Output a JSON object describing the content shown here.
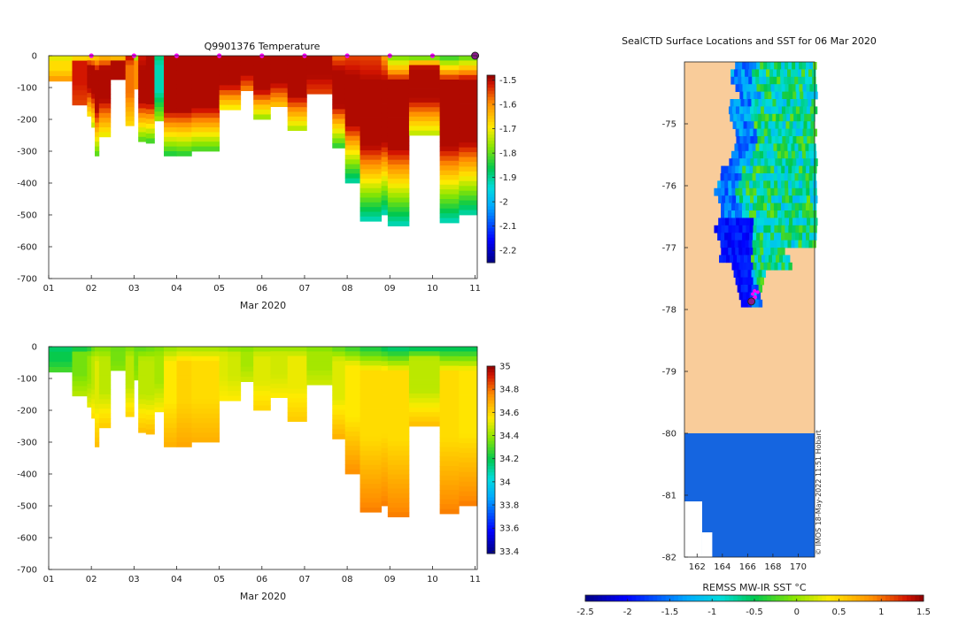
{
  "colors": {
    "land": "#f9cc9a",
    "axis": "#222222",
    "marker": "#ff00ff",
    "position": "#8b1a8b"
  },
  "chart_data": [
    {
      "type": "heatmap",
      "id": "temperature",
      "title": "Q9901376  Temperature",
      "xlabel": "Mar 2020",
      "ylabel": "",
      "xlim": [
        1,
        11.05
      ],
      "ylim": [
        -700,
        0
      ],
      "x_ticks": [
        "01",
        "02",
        "03",
        "04",
        "05",
        "06",
        "07",
        "08",
        "09",
        "10",
        "11"
      ],
      "y_ticks": [
        0,
        -100,
        -200,
        -300,
        -400,
        -500,
        -600,
        -700
      ],
      "colorbar": {
        "min": -2.25,
        "max": -1.48,
        "ticks": [
          -1.5,
          -1.6,
          -1.7,
          -1.8,
          -1.9,
          -2,
          -2.1,
          -2.2
        ]
      },
      "daily_markers_x": [
        2,
        3,
        4,
        5,
        6,
        7,
        8,
        9,
        10
      ],
      "last_position_x": 11,
      "profiles": [
        {
          "x": 1.0,
          "w": 0.55,
          "depth": 80,
          "surface": -1.78,
          "mid": -1.68,
          "deep": -1.6
        },
        {
          "x": 1.55,
          "w": 0.35,
          "depth": 155,
          "surface": -1.75,
          "mid": -1.52,
          "deep": -1.55
        },
        {
          "x": 1.9,
          "w": 0.1,
          "depth": 190,
          "surface": -1.72,
          "mid": -1.5,
          "deep": -1.7
        },
        {
          "x": 2.0,
          "w": 0.08,
          "depth": 225,
          "surface": -1.7,
          "mid": -1.5,
          "deep": -1.75
        },
        {
          "x": 2.08,
          "w": 0.1,
          "depth": 315,
          "surface": -1.68,
          "mid": -1.5,
          "deep": -1.82
        },
        {
          "x": 2.18,
          "w": 0.27,
          "depth": 255,
          "surface": -1.66,
          "mid": -1.5,
          "deep": -1.72
        },
        {
          "x": 2.45,
          "w": 0.35,
          "depth": 75,
          "surface": -1.92,
          "mid": -1.5,
          "deep": -1.5
        },
        {
          "x": 2.8,
          "w": 0.2,
          "depth": 220,
          "surface": -1.5,
          "mid": -1.58,
          "deep": -1.68
        },
        {
          "x": 3.0,
          "w": 0.1,
          "depth": 105,
          "surface": -1.9,
          "mid": -1.6,
          "deep": -1.6
        },
        {
          "x": 3.1,
          "w": 0.18,
          "depth": 270,
          "surface": -1.52,
          "mid": -1.5,
          "deep": -1.82
        },
        {
          "x": 3.28,
          "w": 0.2,
          "depth": 275,
          "surface": -1.5,
          "mid": -1.5,
          "deep": -1.84
        },
        {
          "x": 3.48,
          "w": 0.22,
          "depth": 205,
          "surface": -1.88,
          "mid": -1.92,
          "deep": -1.75
        },
        {
          "x": 3.7,
          "w": 0.3,
          "depth": 315,
          "surface": -1.5,
          "mid": -1.5,
          "deep": -1.86
        },
        {
          "x": 4.0,
          "w": 0.35,
          "depth": 315,
          "surface": -1.5,
          "mid": -1.5,
          "deep": -1.85
        },
        {
          "x": 4.35,
          "w": 0.65,
          "depth": 300,
          "surface": -1.5,
          "mid": -1.5,
          "deep": -1.83
        },
        {
          "x": 5.0,
          "w": 0.2,
          "depth": 170,
          "surface": -1.5,
          "mid": -1.5,
          "deep": -1.72
        },
        {
          "x": 5.2,
          "w": 0.3,
          "depth": 170,
          "surface": -1.5,
          "mid": -1.5,
          "deep": -1.72
        },
        {
          "x": 5.5,
          "w": 0.3,
          "depth": 110,
          "surface": -1.5,
          "mid": -1.5,
          "deep": -1.6
        },
        {
          "x": 5.8,
          "w": 0.4,
          "depth": 200,
          "surface": -1.5,
          "mid": -1.5,
          "deep": -1.78
        },
        {
          "x": 6.2,
          "w": 0.4,
          "depth": 160,
          "surface": -1.5,
          "mid": -1.5,
          "deep": -1.66
        },
        {
          "x": 6.6,
          "w": 0.45,
          "depth": 235,
          "surface": -1.5,
          "mid": -1.5,
          "deep": -1.76
        },
        {
          "x": 7.05,
          "w": 0.6,
          "depth": 120,
          "surface": -1.5,
          "mid": -1.5,
          "deep": -1.55
        },
        {
          "x": 7.65,
          "w": 0.3,
          "depth": 290,
          "surface": -1.58,
          "mid": -1.5,
          "deep": -1.85
        },
        {
          "x": 7.95,
          "w": 0.35,
          "depth": 400,
          "surface": -1.55,
          "mid": -1.5,
          "deep": -1.92
        },
        {
          "x": 8.3,
          "w": 0.5,
          "depth": 520,
          "surface": -1.55,
          "mid": -1.5,
          "deep": -1.93
        },
        {
          "x": 8.8,
          "w": 0.15,
          "depth": 500,
          "surface": -1.62,
          "mid": -1.5,
          "deep": -1.93
        },
        {
          "x": 8.95,
          "w": 0.5,
          "depth": 535,
          "surface": -1.8,
          "mid": -1.5,
          "deep": -1.93
        },
        {
          "x": 9.45,
          "w": 0.72,
          "depth": 250,
          "surface": -1.85,
          "mid": -1.5,
          "deep": -1.75
        },
        {
          "x": 10.17,
          "w": 0.45,
          "depth": 525,
          "surface": -1.85,
          "mid": -1.5,
          "deep": -1.93
        },
        {
          "x": 10.62,
          "w": 0.43,
          "depth": 500,
          "surface": -1.82,
          "mid": -1.5,
          "deep": -1.92
        }
      ]
    },
    {
      "type": "heatmap",
      "id": "salinity",
      "title": "",
      "xlabel": "Mar 2020",
      "ylabel": "",
      "xlim": [
        1,
        11.05
      ],
      "ylim": [
        -700,
        0
      ],
      "x_ticks": [
        "01",
        "02",
        "03",
        "04",
        "05",
        "06",
        "07",
        "08",
        "09",
        "10",
        "11"
      ],
      "y_ticks": [
        0,
        -100,
        -200,
        -300,
        -400,
        -500,
        -600,
        -700
      ],
      "colorbar": {
        "min": 33.38,
        "max": 35.0,
        "ticks": [
          35,
          34.8,
          34.6,
          34.4,
          34.2,
          34,
          33.8,
          33.6,
          33.4
        ]
      },
      "profiles": [
        {
          "x": 1.0,
          "w": 0.55,
          "depth": 80,
          "surface": 34.1,
          "mid": 34.2,
          "deep": 34.3
        },
        {
          "x": 1.55,
          "w": 0.35,
          "depth": 155,
          "surface": 34.15,
          "mid": 34.35,
          "deep": 34.45
        },
        {
          "x": 1.9,
          "w": 0.1,
          "depth": 190,
          "surface": 34.2,
          "mid": 34.4,
          "deep": 34.52
        },
        {
          "x": 2.0,
          "w": 0.08,
          "depth": 225,
          "surface": 34.3,
          "mid": 34.45,
          "deep": 34.58
        },
        {
          "x": 2.08,
          "w": 0.1,
          "depth": 315,
          "surface": 34.35,
          "mid": 34.5,
          "deep": 34.65
        },
        {
          "x": 2.18,
          "w": 0.27,
          "depth": 255,
          "surface": 34.35,
          "mid": 34.45,
          "deep": 34.62
        },
        {
          "x": 2.45,
          "w": 0.35,
          "depth": 75,
          "surface": 34.32,
          "mid": 34.35,
          "deep": 34.38
        },
        {
          "x": 2.8,
          "w": 0.2,
          "depth": 220,
          "surface": 34.35,
          "mid": 34.45,
          "deep": 34.6
        },
        {
          "x": 3.0,
          "w": 0.1,
          "depth": 105,
          "surface": 34.3,
          "mid": 34.36,
          "deep": 34.4
        },
        {
          "x": 3.1,
          "w": 0.18,
          "depth": 270,
          "surface": 34.3,
          "mid": 34.45,
          "deep": 34.65
        },
        {
          "x": 3.28,
          "w": 0.2,
          "depth": 275,
          "surface": 34.32,
          "mid": 34.45,
          "deep": 34.66
        },
        {
          "x": 3.48,
          "w": 0.22,
          "depth": 205,
          "surface": 34.35,
          "mid": 34.42,
          "deep": 34.55
        },
        {
          "x": 3.7,
          "w": 0.3,
          "depth": 315,
          "surface": 34.38,
          "mid": 34.55,
          "deep": 34.68
        },
        {
          "x": 4.0,
          "w": 0.35,
          "depth": 315,
          "surface": 34.4,
          "mid": 34.6,
          "deep": 34.7
        },
        {
          "x": 4.35,
          "w": 0.65,
          "depth": 300,
          "surface": 34.4,
          "mid": 34.58,
          "deep": 34.68
        },
        {
          "x": 5.0,
          "w": 0.2,
          "depth": 170,
          "surface": 34.38,
          "mid": 34.5,
          "deep": 34.55
        },
        {
          "x": 5.2,
          "w": 0.3,
          "depth": 170,
          "surface": 34.36,
          "mid": 34.48,
          "deep": 34.55
        },
        {
          "x": 5.5,
          "w": 0.3,
          "depth": 110,
          "surface": 34.35,
          "mid": 34.42,
          "deep": 34.48
        },
        {
          "x": 5.8,
          "w": 0.4,
          "depth": 200,
          "surface": 34.38,
          "mid": 34.5,
          "deep": 34.6
        },
        {
          "x": 6.2,
          "w": 0.4,
          "depth": 160,
          "surface": 34.38,
          "mid": 34.48,
          "deep": 34.55
        },
        {
          "x": 6.6,
          "w": 0.45,
          "depth": 235,
          "surface": 34.38,
          "mid": 34.52,
          "deep": 34.62
        },
        {
          "x": 7.05,
          "w": 0.6,
          "depth": 120,
          "surface": 34.35,
          "mid": 34.42,
          "deep": 34.48
        },
        {
          "x": 7.65,
          "w": 0.3,
          "depth": 290,
          "surface": 34.3,
          "mid": 34.5,
          "deep": 34.68
        },
        {
          "x": 7.95,
          "w": 0.35,
          "depth": 400,
          "surface": 34.25,
          "mid": 34.55,
          "deep": 34.75
        },
        {
          "x": 8.3,
          "w": 0.5,
          "depth": 520,
          "surface": 34.2,
          "mid": 34.58,
          "deep": 34.78
        },
        {
          "x": 8.8,
          "w": 0.15,
          "depth": 500,
          "surface": 34.15,
          "mid": 34.58,
          "deep": 34.78
        },
        {
          "x": 8.95,
          "w": 0.5,
          "depth": 535,
          "surface": 34.12,
          "mid": 34.58,
          "deep": 34.78
        },
        {
          "x": 9.45,
          "w": 0.72,
          "depth": 250,
          "surface": 34.12,
          "mid": 34.45,
          "deep": 34.65
        },
        {
          "x": 10.17,
          "w": 0.45,
          "depth": 525,
          "surface": 34.15,
          "mid": 34.58,
          "deep": 34.78
        },
        {
          "x": 10.62,
          "w": 0.43,
          "depth": 500,
          "surface": 34.15,
          "mid": 34.56,
          "deep": 34.78
        }
      ]
    },
    {
      "type": "heatmap",
      "id": "sst-map",
      "title": "SealCTD Surface Locations and SST for 06 Mar 2020",
      "xlim": [
        161,
        171.3
      ],
      "ylim": [
        -82,
        -74
      ],
      "x_ticks": [
        162,
        164,
        166,
        168,
        170
      ],
      "y_ticks": [
        -75,
        -76,
        -77,
        -78,
        -79,
        -80,
        -81,
        -82
      ],
      "colorbar": {
        "label": "REMSS MW-IR SST °C",
        "min": -2.5,
        "max": 1.5,
        "ticks": [
          "-2.5",
          "-2",
          "-1.5",
          "-1",
          "-0.5",
          "0",
          "0.5",
          "1",
          "1.5"
        ]
      },
      "credit": "© IMOS 18-May-2022 11:51 Hobart",
      "sea_region_lon": [
        164.6,
        171.2
      ],
      "ice_shelf_blue_below_lat": -80,
      "track_points": [
        {
          "lon": 166.4,
          "lat": -77.75
        },
        {
          "lon": 166.55,
          "lat": -77.7
        },
        {
          "lon": 166.6,
          "lat": -77.8
        },
        {
          "lon": 166.5,
          "lat": -77.82
        },
        {
          "lon": 166.8,
          "lat": -77.72
        }
      ],
      "last_position": {
        "lon": 166.3,
        "lat": -77.87
      }
    }
  ]
}
